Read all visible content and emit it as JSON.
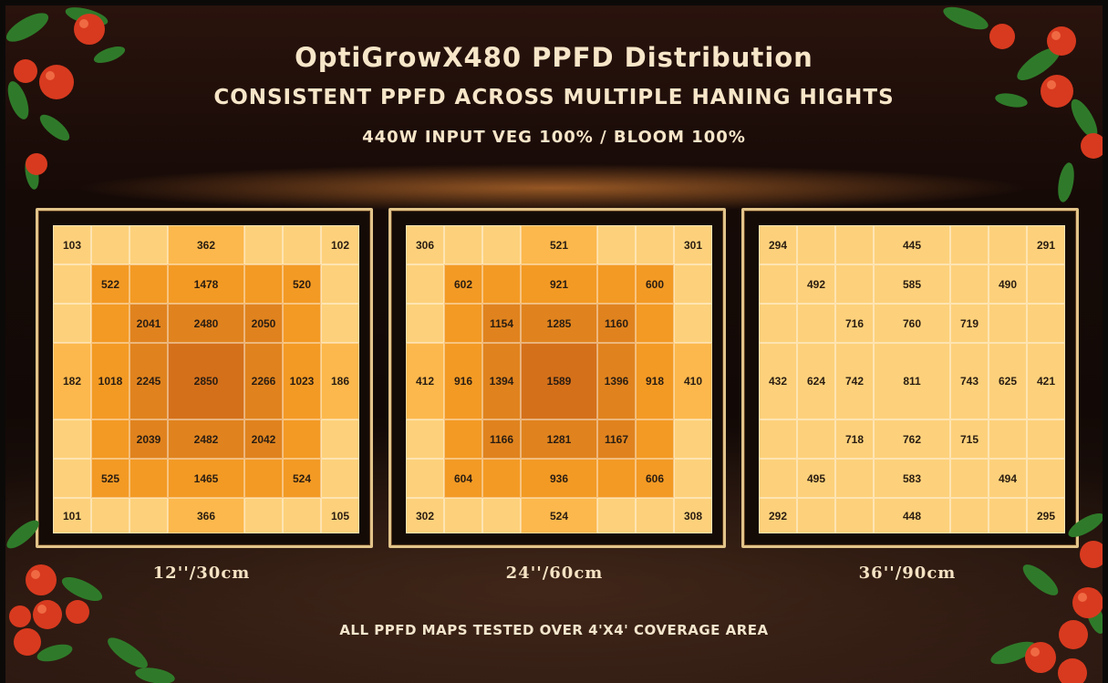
{
  "header": {
    "title": "OptiGrowX480 PPFD Distribution",
    "subtitle": "CONSISTENT PPFD ACROSS MULTIPLE HANING HIGHTS",
    "power_line": "440W INPUT VEG 100% / BLOOM 100%"
  },
  "footer": {
    "note": "ALL PPFD MAPS TESTED OVER 4'X4' COVERAGE AREA"
  },
  "colors": {
    "pale": "#fdd17b",
    "light": "#fcb84c",
    "mid": "#f39a24",
    "dark": "#e0831e",
    "darkest": "#d5701a",
    "frame": "#e2c48a",
    "text": "#f8e6c9"
  },
  "decor": {
    "corner_art": "tomato-vine"
  },
  "chart_data": [
    {
      "type": "heatmap",
      "title": "12''/30cm",
      "grid_size": [
        7,
        7
      ],
      "values": [
        [
          103,
          null,
          null,
          362,
          null,
          null,
          102
        ],
        [
          null,
          522,
          null,
          1478,
          null,
          520,
          null
        ],
        [
          null,
          null,
          2041,
          2480,
          2050,
          null,
          null
        ],
        [
          182,
          1018,
          2245,
          2850,
          2266,
          1023,
          186
        ],
        [
          null,
          null,
          2039,
          2482,
          2042,
          null,
          null
        ],
        [
          null,
          525,
          null,
          1465,
          null,
          524,
          null
        ],
        [
          101,
          null,
          null,
          366,
          null,
          null,
          105
        ]
      ]
    },
    {
      "type": "heatmap",
      "title": "24''/60cm",
      "grid_size": [
        7,
        7
      ],
      "values": [
        [
          306,
          null,
          null,
          521,
          null,
          null,
          301
        ],
        [
          null,
          602,
          null,
          921,
          null,
          600,
          null
        ],
        [
          null,
          null,
          1154,
          1285,
          1160,
          null,
          null
        ],
        [
          412,
          916,
          1394,
          1589,
          1396,
          918,
          410
        ],
        [
          null,
          null,
          1166,
          1281,
          1167,
          null,
          null
        ],
        [
          null,
          604,
          null,
          936,
          null,
          606,
          null
        ],
        [
          302,
          null,
          null,
          524,
          null,
          null,
          308
        ]
      ]
    },
    {
      "type": "heatmap",
      "title": "36''/90cm",
      "grid_size": [
        7,
        7
      ],
      "values": [
        [
          294,
          null,
          null,
          445,
          null,
          null,
          291
        ],
        [
          null,
          492,
          null,
          585,
          null,
          490,
          null
        ],
        [
          null,
          null,
          716,
          760,
          719,
          null,
          null
        ],
        [
          432,
          624,
          742,
          811,
          743,
          625,
          421
        ],
        [
          null,
          null,
          718,
          762,
          715,
          null,
          null
        ],
        [
          null,
          495,
          null,
          583,
          null,
          494,
          null
        ],
        [
          292,
          null,
          null,
          448,
          null,
          null,
          295
        ]
      ]
    }
  ]
}
